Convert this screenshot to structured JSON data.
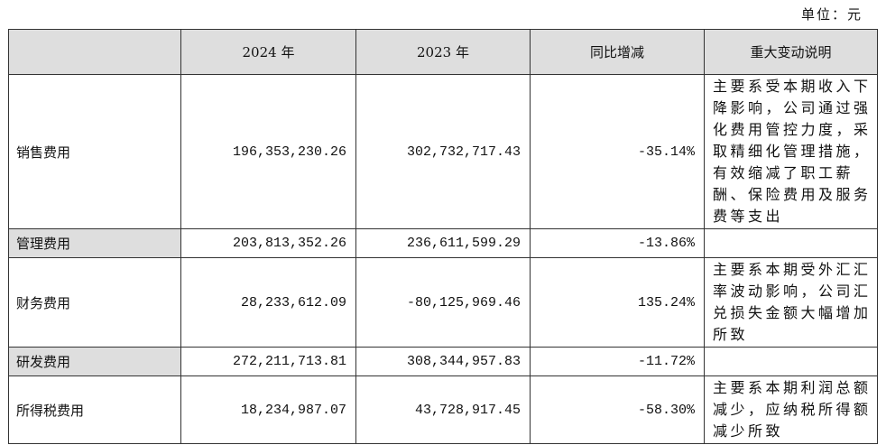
{
  "unit": "单位：元",
  "table": {
    "header": [
      "",
      "2024 年",
      "2023 年",
      "同比增减",
      "重大变动说明"
    ],
    "rows": [
      [
        "销售费用",
        "196,353,230.26",
        "302,732,717.43",
        "-35.14%",
        "主要系受本期收入下降影响，公司通过强化费用管控力度，采取精细化管理措施，有效缩减了职工薪酬、保险费用及服务费等支出"
      ],
      [
        "管理费用",
        "203,813,352.26",
        "236,611,599.29",
        "-13.86%",
        ""
      ],
      [
        "财务费用",
        "28,233,612.09",
        "-80,125,969.46",
        "135.24%",
        "主要系本期受外汇汇率波动影响，公司汇兑损失金额大幅增加所致"
      ],
      [
        "研发费用",
        "272,211,713.81",
        "308,344,957.83",
        "-11.72%",
        ""
      ],
      [
        "所得税费用",
        "18,234,987.07",
        "43,728,917.45",
        "-58.30%",
        "主要系本期利润总额减少，应纳税所得额减少所致"
      ]
    ]
  }
}
